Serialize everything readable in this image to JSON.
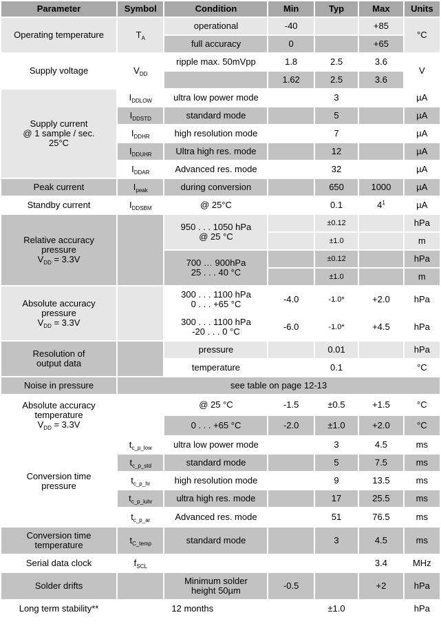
{
  "headers": {
    "parameter": "Parameter",
    "symbol": "Symbol",
    "condition": "Condition",
    "min": "Min",
    "typ": "Typ",
    "max": "Max",
    "units": "Units"
  },
  "op_temp": {
    "param": "Operating temperature",
    "sym": "T",
    "sym_sub": "A",
    "c1": "operational",
    "c1_min": "-40",
    "c1_max": "+85",
    "c2": "full accuracy",
    "c2_min": "0",
    "c2_max": "+65",
    "unit": "°C"
  },
  "supply_voltage": {
    "param": "Supply voltage",
    "sym": "V",
    "sym_sub": "DD",
    "c1": "ripple max. 50mVpp",
    "c1_min": "1.8",
    "c1_typ": "2.5",
    "c1_max": "3.6",
    "c2_min": "1.62",
    "c2_typ": "2.5",
    "c2_max": "3.6",
    "unit": "V"
  },
  "supply_current": {
    "param_l1": "Supply current",
    "param_l2": "@  1 sample / sec.",
    "param_l3": "25°C",
    "rows": [
      {
        "sym": "I",
        "sub": "DDLOW",
        "cond": "ultra low power mode",
        "typ": "3",
        "unit": "µA"
      },
      {
        "sym": "I",
        "sub": "DDSTD",
        "cond": "standard mode",
        "typ": "5",
        "unit": "µA"
      },
      {
        "sym": "I",
        "sub": "DDHR",
        "cond": "high resolution mode",
        "typ": "7",
        "unit": "µA"
      },
      {
        "sym": "I",
        "sub": "DDUHR",
        "cond": "Ultra high res. mode",
        "typ": "12",
        "unit": "µA"
      },
      {
        "sym": "I",
        "sub": "DDAR",
        "cond": "Advanced res. mode",
        "typ": "32",
        "unit": "µA"
      }
    ]
  },
  "peak": {
    "param": "Peak current",
    "sym": "I",
    "sub": "peak",
    "cond": "during conversion",
    "typ": "650",
    "max": "1000",
    "unit": "µA"
  },
  "standby": {
    "param": "Standby current",
    "sym": "I",
    "sub": "DDSBM",
    "cond": "@ 25°C",
    "typ": "0.1",
    "max": "4",
    "max_sup": "1",
    "unit": "µA"
  },
  "rel_acc": {
    "param_l1": "Relative accuracy",
    "param_l2": "pressure",
    "param_l3": "V",
    "param_l3_sub": "DD",
    "param_l3_rest": " = 3.3V",
    "c1_l1": "950 . . . 1050 hPa",
    "c1_l2": "@ 25 °C",
    "c1_typ_a": "±0.12",
    "c1_unit_a": "hPa",
    "c1_typ_b": "±1.0",
    "c1_unit_b": "m",
    "c2_l1": "700 … 900hPa",
    "c2_l2": "25 . . . 40 °C",
    "c2_typ_a": "±0.12",
    "c2_unit_a": "hPa",
    "c2_typ_b": "±1.0",
    "c2_unit_b": "m"
  },
  "abs_acc": {
    "param_l1": "Absolute accuracy",
    "param_l2": "pressure",
    "param_l3": "V",
    "param_l3_sub": "DD",
    "param_l3_rest": " = 3.3V",
    "c1_l1": "300 . . . 1100 hPa",
    "c1_l2": "0 . . . +65 °C",
    "c1_min": "-4.0",
    "c1_typ": "-1.0*",
    "c1_max": "+2.0",
    "c1_unit": "hPa",
    "c2_l1": "300 . . .  1100 hPa",
    "c2_l2": "-20 . . . 0 °C",
    "c2_min": "-6.0",
    "c2_typ": "-1.0*",
    "c2_max": "+4.5",
    "c2_unit": "hPa"
  },
  "resolution": {
    "param_l1": "Resolution of",
    "param_l2": "output data",
    "c1": "pressure",
    "c1_typ": "0.01",
    "c1_unit": "hPa",
    "c2": "temperature",
    "c2_typ": "0.1",
    "c2_unit": "°C"
  },
  "noise": {
    "param": "Noise in pressure",
    "note": "see table on page 12-13"
  },
  "abs_temp": {
    "param_l1": "Absolute accuracy",
    "param_l2": "temperature",
    "param_l3": "V",
    "param_l3_sub": "DD",
    "param_l3_rest": " = 3.3V",
    "c1": "@ 25 °C",
    "c1_min": "-1.5",
    "c1_typ": "±0.5",
    "c1_max": "+1.5",
    "c1_unit": "°C",
    "c2": "0 . . . +65 °C",
    "c2_min": "-2.0",
    "c2_typ": "±1.0",
    "c2_max": "+2.0",
    "c2_unit": "°C"
  },
  "conv_pressure": {
    "param_l1": "Conversion time",
    "param_l2": "pressure",
    "rows": [
      {
        "sym": "t",
        "sub": "c_p_low",
        "cond": "ultra low power mode",
        "typ": "3",
        "max": "4.5",
        "unit": "ms"
      },
      {
        "sym": "t",
        "sub": "c_p_std",
        "cond": "standard mode",
        "typ": "5",
        "max": "7.5",
        "unit": "ms"
      },
      {
        "sym": "t",
        "sub": "c_p_hr",
        "cond": "high resolution mode",
        "typ": "9",
        "max": "13.5",
        "unit": "ms"
      },
      {
        "sym": "t",
        "sub": "c_p_luhr",
        "cond": "ultra high res. mode",
        "typ": "17",
        "max": "25.5",
        "unit": "ms"
      },
      {
        "sym": "t",
        "sub": "c_p_ar",
        "cond": "Advanced res. mode",
        "typ": "51",
        "max": "76.5",
        "unit": "ms"
      }
    ]
  },
  "conv_temp": {
    "param_l1": "Conversion time",
    "param_l2": "temperature",
    "sym": "t",
    "sub": "C_temp",
    "cond": "standard mode",
    "typ": "3",
    "max": "4.5",
    "unit": "ms"
  },
  "serial": {
    "param": "Serial data clock",
    "sym": "f",
    "sub": "SCL",
    "max": "3.4",
    "unit": "MHz"
  },
  "solder": {
    "param": "Solder drifts",
    "cond_l1": "Minimum solder",
    "cond_l2": "height 50µm",
    "min": "-0.5",
    "max": "+2",
    "unit": "hPa"
  },
  "longterm": {
    "param": "Long term stability**",
    "cond": "12 months",
    "typ": "±1.0",
    "unit": "hPa"
  }
}
